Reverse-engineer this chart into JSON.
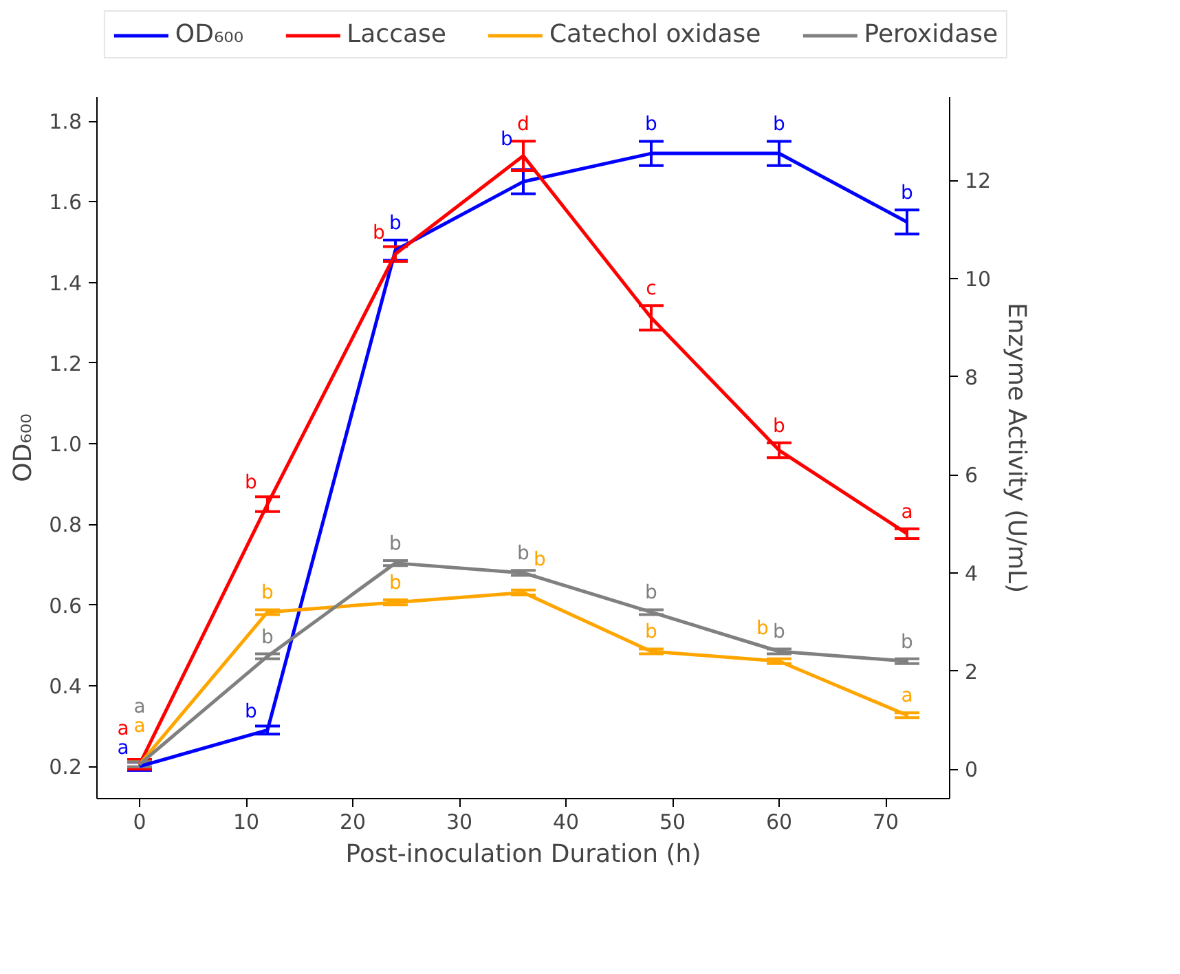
{
  "chart_data": {
    "type": "line",
    "xlabel": "Post-inoculation Duration (h)",
    "ylabel": "OD₆₀₀",
    "y2label": "Enzyme Activity (U/mL)",
    "x": [
      0,
      12,
      24,
      36,
      48,
      60,
      72
    ],
    "xlim": [
      -4,
      76
    ],
    "xticks": [
      0,
      10,
      20,
      30,
      40,
      50,
      60,
      70
    ],
    "ylim": [
      0.12,
      1.86
    ],
    "yticks": [
      {
        "value": 0.2,
        "label": "0.2"
      },
      {
        "value": 0.4,
        "label": "0.4"
      },
      {
        "value": 0.6,
        "label": "0.6"
      },
      {
        "value": 0.8,
        "label": "0.8"
      },
      {
        "value": 1.0,
        "label": "1.0"
      },
      {
        "value": 1.2,
        "label": "1.2"
      },
      {
        "value": 1.4,
        "label": "1.4"
      },
      {
        "value": 1.6,
        "label": "1.6"
      },
      {
        "value": 1.8,
        "label": "1.8"
      }
    ],
    "y2lim": [
      -0.6,
      13.7
    ],
    "y2ticks": [
      0,
      2,
      4,
      6,
      8,
      10,
      12
    ],
    "legend": "top",
    "grid": false,
    "marker": "none",
    "line_style": "solid",
    "series": [
      {
        "name": "OD₆₀₀",
        "color": "#0000ff",
        "values": [
          0.2,
          0.29,
          1.48,
          1.65,
          1.72,
          1.72,
          1.55
        ],
        "errors": [
          0.01,
          0.01,
          0.025,
          0.03,
          0.03,
          0.03,
          0.03
        ],
        "value_labels": [
          "a",
          "b",
          "b",
          "b",
          "b",
          "b",
          "b"
        ]
      },
      {
        "name": "Laccase",
        "color": "#ff0000",
        "axis": "y2",
        "values": [
          0.1,
          5.4,
          10.5,
          12.5,
          9.2,
          6.5,
          4.8
        ],
        "errors": [
          0.1,
          0.15,
          0.15,
          0.3,
          0.25,
          0.15,
          0.1
        ],
        "value_labels": [
          "a",
          "b",
          "b",
          "d",
          "c",
          "b",
          "a"
        ]
      },
      {
        "name": "Catechol oxidase",
        "color": "#ffa500",
        "axis": "y2",
        "values": [
          0.1,
          3.2,
          3.4,
          3.6,
          2.4,
          2.2,
          1.1
        ],
        "errors": [
          0.05,
          0.05,
          0.05,
          0.05,
          0.05,
          0.05,
          0.05
        ],
        "value_labels": [
          "a",
          "b",
          "b",
          "b",
          "b",
          "b",
          "a"
        ]
      },
      {
        "name": "Peroxidase",
        "color": "#808080",
        "axis": "y2",
        "values": [
          0.1,
          2.3,
          4.2,
          4.0,
          3.2,
          2.4,
          2.2
        ],
        "errors": [
          0.05,
          0.05,
          0.05,
          0.05,
          0.05,
          0.05,
          0.05
        ],
        "value_labels": [
          "a",
          "b",
          "b",
          "b",
          "b",
          "b",
          "b"
        ]
      }
    ]
  }
}
